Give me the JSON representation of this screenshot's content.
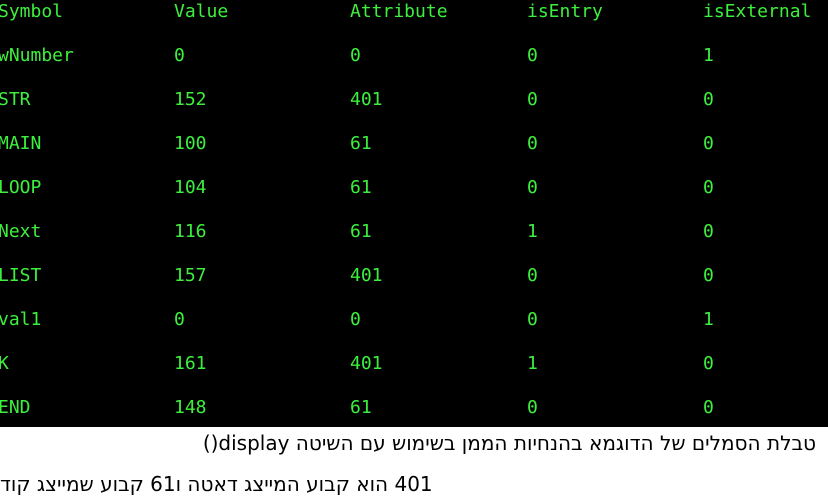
{
  "table": {
    "headers": [
      "Symbol",
      "Value",
      "Attribute",
      "isEntry",
      "isExternal"
    ],
    "rows": [
      [
        "wNumber",
        "0",
        "0",
        "0",
        "1"
      ],
      [
        "STR",
        "152",
        "401",
        "0",
        "0"
      ],
      [
        "MAIN",
        "100",
        "61",
        "0",
        "0"
      ],
      [
        "LOOP",
        "104",
        "61",
        "0",
        "0"
      ],
      [
        "Next",
        "116",
        "61",
        "1",
        "0"
      ],
      [
        "LIST",
        "157",
        "401",
        "0",
        "0"
      ],
      [
        "val1",
        "0",
        "0",
        "0",
        "1"
      ],
      [
        "K",
        "161",
        "401",
        "1",
        "0"
      ],
      [
        "END",
        "148",
        "61",
        "0",
        "0"
      ]
    ]
  },
  "caption": {
    "lines": [
      "טבלת הסמלים של הדוגמא בהנחיות הממן בשימוש עם השיטה display()",
      "401 הוא קבוע המייצג דאטה ו61 קבוע שמייצג קוד"
    ]
  }
}
